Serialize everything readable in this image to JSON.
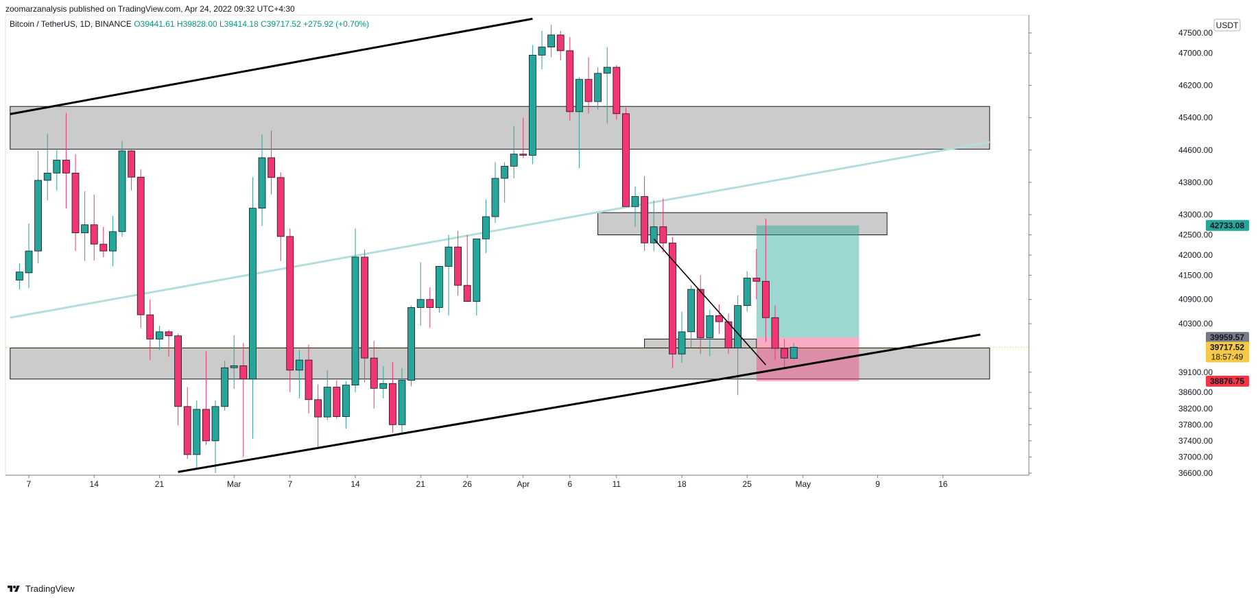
{
  "header": {
    "publish_line": "zoomarzanalysis published on TradingView.com, Apr 24, 2022 09:32 UTC+4:30"
  },
  "footer": {
    "brand": "TradingView"
  },
  "chart_data": {
    "type": "candlestick",
    "symbol_line": "Bitcoin / TetherUS, 1D, BINANCE",
    "ohlc_readout": {
      "o": "O39441.61",
      "h": "H39828.00",
      "l": "L39414.18",
      "c": "C39717.52",
      "change": "+275.92 (+0.70%)"
    },
    "currency_badge": "USDT",
    "y_ticks": [
      47500,
      47000,
      46200,
      45400,
      44600,
      43800,
      43000,
      42500,
      42000,
      41500,
      40900,
      40300,
      39100,
      38600,
      38200,
      37800,
      37400,
      37000,
      36600
    ],
    "y_tick_labels": [
      "47500.00",
      "47000.00",
      "46200.00",
      "45400.00",
      "44600.00",
      "43800.00",
      "43000.00",
      "42500.00",
      "42000.00",
      "41500.00",
      "40900.00",
      "40300.00",
      "39100.00",
      "38600.00",
      "38200.00",
      "37800.00",
      "37400.00",
      "37000.00",
      "36600.00"
    ],
    "x_ticks": [
      {
        "label": "7",
        "day": 0
      },
      {
        "label": "14",
        "day": 7
      },
      {
        "label": "21",
        "day": 14
      },
      {
        "label": "Mar",
        "day": 22
      },
      {
        "label": "7",
        "day": 28
      },
      {
        "label": "14",
        "day": 35
      },
      {
        "label": "21",
        "day": 42
      },
      {
        "label": "26",
        "day": 47
      },
      {
        "label": "Apr",
        "day": 53
      },
      {
        "label": "6",
        "day": 58
      },
      {
        "label": "11",
        "day": 63
      },
      {
        "label": "18",
        "day": 70
      },
      {
        "label": "25",
        "day": 77
      },
      {
        "label": "May",
        "day": 83
      },
      {
        "label": "9",
        "day": 91
      },
      {
        "label": "16",
        "day": 98
      }
    ],
    "x_note": "day 0 = Feb 7, 2022",
    "candles": [
      {
        "day": -1,
        "o": 41380,
        "h": 41800,
        "l": 41150,
        "c": 41580
      },
      {
        "day": 0,
        "o": 41560,
        "h": 42780,
        "l": 41180,
        "c": 42100
      },
      {
        "day": 1,
        "o": 42100,
        "h": 44580,
        "l": 41800,
        "c": 43850
      },
      {
        "day": 2,
        "o": 43850,
        "h": 45000,
        "l": 43350,
        "c": 44030
      },
      {
        "day": 3,
        "o": 44030,
        "h": 44600,
        "l": 43600,
        "c": 44350
      },
      {
        "day": 4,
        "o": 44350,
        "h": 45520,
        "l": 43150,
        "c": 44030
      },
      {
        "day": 5,
        "o": 44030,
        "h": 44500,
        "l": 42100,
        "c": 42550
      },
      {
        "day": 6,
        "o": 42550,
        "h": 43580,
        "l": 41850,
        "c": 42750
      },
      {
        "day": 7,
        "o": 42750,
        "h": 43500,
        "l": 41860,
        "c": 42270
      },
      {
        "day": 8,
        "o": 42270,
        "h": 42700,
        "l": 41950,
        "c": 42100
      },
      {
        "day": 9,
        "o": 42100,
        "h": 42970,
        "l": 41720,
        "c": 42580
      },
      {
        "day": 10,
        "o": 42580,
        "h": 44820,
        "l": 42450,
        "c": 44580
      },
      {
        "day": 11,
        "o": 44580,
        "h": 44600,
        "l": 43600,
        "c": 43930
      },
      {
        "day": 12,
        "o": 43930,
        "h": 44120,
        "l": 40200,
        "c": 40520
      },
      {
        "day": 13,
        "o": 40520,
        "h": 40900,
        "l": 39400,
        "c": 39920
      },
      {
        "day": 14,
        "o": 39920,
        "h": 40250,
        "l": 39650,
        "c": 40100
      },
      {
        "day": 15,
        "o": 40100,
        "h": 40150,
        "l": 39480,
        "c": 40000
      },
      {
        "day": 16,
        "o": 40000,
        "h": 40050,
        "l": 37780,
        "c": 38250
      },
      {
        "day": 17,
        "o": 38250,
        "h": 38730,
        "l": 36950,
        "c": 37060
      },
      {
        "day": 18,
        "o": 37060,
        "h": 38400,
        "l": 36700,
        "c": 38180
      },
      {
        "day": 19,
        "o": 38180,
        "h": 39620,
        "l": 37300,
        "c": 37400
      },
      {
        "day": 20,
        "o": 37400,
        "h": 38400,
        "l": 36600,
        "c": 38250
      },
      {
        "day": 21,
        "o": 38250,
        "h": 39380,
        "l": 38150,
        "c": 39210
      },
      {
        "day": 22,
        "o": 39210,
        "h": 40010,
        "l": 38690,
        "c": 39260
      },
      {
        "day": 23,
        "o": 39260,
        "h": 39820,
        "l": 37000,
        "c": 38930
      },
      {
        "day": 24,
        "o": 38930,
        "h": 43930,
        "l": 37450,
        "c": 43160
      },
      {
        "day": 25,
        "o": 43160,
        "h": 44980,
        "l": 42720,
        "c": 44410
      },
      {
        "day": 26,
        "o": 44410,
        "h": 45080,
        "l": 43500,
        "c": 43920
      },
      {
        "day": 27,
        "o": 43920,
        "h": 44050,
        "l": 41850,
        "c": 42460
      },
      {
        "day": 28,
        "o": 42460,
        "h": 42650,
        "l": 38600,
        "c": 39150
      },
      {
        "day": 29,
        "o": 39150,
        "h": 39650,
        "l": 38450,
        "c": 39400
      },
      {
        "day": 30,
        "o": 39400,
        "h": 39780,
        "l": 38080,
        "c": 38420
      },
      {
        "day": 31,
        "o": 38420,
        "h": 38800,
        "l": 37200,
        "c": 37990
      },
      {
        "day": 32,
        "o": 37990,
        "h": 39150,
        "l": 37910,
        "c": 38730
      },
      {
        "day": 33,
        "o": 38730,
        "h": 38900,
        "l": 37950,
        "c": 38000
      },
      {
        "day": 34,
        "o": 38000,
        "h": 38880,
        "l": 37700,
        "c": 38780
      },
      {
        "day": 35,
        "o": 38780,
        "h": 42660,
        "l": 38600,
        "c": 41950
      },
      {
        "day": 36,
        "o": 41950,
        "h": 42140,
        "l": 38850,
        "c": 39450
      },
      {
        "day": 37,
        "o": 39450,
        "h": 39870,
        "l": 38200,
        "c": 38700
      },
      {
        "day": 38,
        "o": 38700,
        "h": 39250,
        "l": 38450,
        "c": 38820
      },
      {
        "day": 39,
        "o": 38820,
        "h": 39350,
        "l": 37600,
        "c": 37800
      },
      {
        "day": 40,
        "o": 37800,
        "h": 39200,
        "l": 37560,
        "c": 38900
      },
      {
        "day": 41,
        "o": 38900,
        "h": 40750,
        "l": 38750,
        "c": 40700
      },
      {
        "day": 42,
        "o": 40700,
        "h": 41820,
        "l": 40250,
        "c": 40900
      },
      {
        "day": 43,
        "o": 40900,
        "h": 41200,
        "l": 40200,
        "c": 40700
      },
      {
        "day": 44,
        "o": 40700,
        "h": 41720,
        "l": 40570,
        "c": 41720
      },
      {
        "day": 45,
        "o": 41720,
        "h": 42500,
        "l": 40500,
        "c": 42200
      },
      {
        "day": 46,
        "o": 42200,
        "h": 42600,
        "l": 41000,
        "c": 41250
      },
      {
        "day": 47,
        "o": 41250,
        "h": 42500,
        "l": 40900,
        "c": 40850
      },
      {
        "day": 48,
        "o": 40850,
        "h": 42300,
        "l": 40500,
        "c": 42400
      },
      {
        "day": 49,
        "o": 42400,
        "h": 43380,
        "l": 42050,
        "c": 42950
      },
      {
        "day": 50,
        "o": 42950,
        "h": 44300,
        "l": 42800,
        "c": 43900
      },
      {
        "day": 51,
        "o": 43900,
        "h": 44300,
        "l": 43300,
        "c": 44200
      },
      {
        "day": 52,
        "o": 44200,
        "h": 45200,
        "l": 43900,
        "c": 44500
      },
      {
        "day": 53,
        "o": 44500,
        "h": 45400,
        "l": 44400,
        "c": 44470
      },
      {
        "day": 54,
        "o": 44470,
        "h": 47200,
        "l": 44250,
        "c": 46950
      },
      {
        "day": 55,
        "o": 46950,
        "h": 47550,
        "l": 46600,
        "c": 47150
      },
      {
        "day": 56,
        "o": 47150,
        "h": 47700,
        "l": 46900,
        "c": 47450
      },
      {
        "day": 57,
        "o": 47450,
        "h": 47550,
        "l": 46820,
        "c": 47060
      },
      {
        "day": 58,
        "o": 47060,
        "h": 47400,
        "l": 45330,
        "c": 45550
      },
      {
        "day": 59,
        "o": 45550,
        "h": 46400,
        "l": 44150,
        "c": 46350
      },
      {
        "day": 60,
        "o": 46350,
        "h": 46900,
        "l": 45500,
        "c": 45800
      },
      {
        "day": 61,
        "o": 45800,
        "h": 46650,
        "l": 45600,
        "c": 46500
      },
      {
        "day": 62,
        "o": 46500,
        "h": 47150,
        "l": 45250,
        "c": 46650
      },
      {
        "day": 63,
        "o": 46650,
        "h": 46700,
        "l": 45350,
        "c": 45500
      },
      {
        "day": 64,
        "o": 45500,
        "h": 45650,
        "l": 43220,
        "c": 43200
      },
      {
        "day": 65,
        "o": 43200,
        "h": 43700,
        "l": 42700,
        "c": 43450
      },
      {
        "day": 66,
        "o": 43450,
        "h": 43950,
        "l": 42100,
        "c": 42300
      },
      {
        "day": 67,
        "o": 42300,
        "h": 43350,
        "l": 42100,
        "c": 42700
      },
      {
        "day": 68,
        "o": 42700,
        "h": 43400,
        "l": 42060,
        "c": 42300
      },
      {
        "day": 69,
        "o": 42300,
        "h": 42450,
        "l": 39200,
        "c": 39550
      },
      {
        "day": 70,
        "o": 39550,
        "h": 40600,
        "l": 39330,
        "c": 40100
      },
      {
        "day": 71,
        "o": 40100,
        "h": 41250,
        "l": 39700,
        "c": 41150
      },
      {
        "day": 72,
        "o": 41150,
        "h": 41500,
        "l": 39550,
        "c": 39950
      },
      {
        "day": 73,
        "o": 39950,
        "h": 40650,
        "l": 39500,
        "c": 40500
      },
      {
        "day": 74,
        "o": 40500,
        "h": 40780,
        "l": 40050,
        "c": 40350
      },
      {
        "day": 75,
        "o": 40350,
        "h": 40550,
        "l": 39560,
        "c": 39700
      },
      {
        "day": 76,
        "o": 39700,
        "h": 41000,
        "l": 38530,
        "c": 40750
      },
      {
        "day": 77,
        "o": 40750,
        "h": 41600,
        "l": 40600,
        "c": 41430
      },
      {
        "day": 78,
        "o": 41430,
        "h": 42150,
        "l": 40900,
        "c": 41350
      },
      {
        "day": 79,
        "o": 41350,
        "h": 42900,
        "l": 39850,
        "c": 40450
      },
      {
        "day": 80,
        "o": 40450,
        "h": 40750,
        "l": 39400,
        "c": 39690
      },
      {
        "day": 81,
        "o": 39690,
        "h": 39920,
        "l": 39170,
        "c": 39450
      },
      {
        "day": 82,
        "o": 39441.61,
        "h": 39828,
        "l": 39414.18,
        "c": 39717.52
      }
    ],
    "price_labels": [
      {
        "value": 42733.08,
        "text": "42733.08",
        "color": "#26a69a"
      },
      {
        "value": 39959.57,
        "text": "39959.57",
        "color": "#787b86"
      },
      {
        "value": 39717.52,
        "text": "39717.52",
        "sub": "18:57:49",
        "color": "#f7c948"
      },
      {
        "value": 38876.75,
        "text": "38876.75",
        "color": "#f23645"
      }
    ],
    "zones": [
      {
        "from_day": -2,
        "to_day": 103,
        "low": 44620,
        "high": 45680
      },
      {
        "from_day": -2,
        "to_day": 103,
        "low": 38930,
        "high": 39700
      },
      {
        "from_day": 61,
        "to_day": 92,
        "low": 42500,
        "high": 43050
      },
      {
        "from_day": 66,
        "to_day": 78,
        "low": 39700,
        "high": 39920
      }
    ],
    "channel": {
      "upper": {
        "from_day": -2,
        "from_price": 45490,
        "to_day": 54,
        "to_price": 47850
      },
      "lower": {
        "from_day": 16,
        "from_price": 36630,
        "to_day": 102,
        "to_price": 40030
      },
      "mid": {
        "from_day": -2,
        "from_price": 40450,
        "to_day": 103,
        "to_price": 44800
      }
    },
    "downtrend": {
      "from_day": 67,
      "from_price": 42400,
      "to_day": 79,
      "to_price": 39280
    },
    "position": {
      "from_day": 78,
      "to_day": 89,
      "entry": 39959.57,
      "target": 42733.08,
      "stop": 38876.75
    },
    "current_price": 39717.52
  }
}
